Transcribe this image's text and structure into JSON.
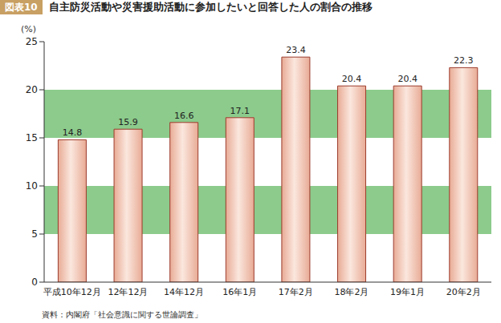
{
  "chart_data": {
    "type": "bar",
    "figure_label": "図表10",
    "title": "自主防災活動や災害援助活動に参加したいと回答した人の割合の推移",
    "y_label": "(%)",
    "source": "資料：内閣府「社会意識に関する世論調査」",
    "categories": [
      "平成10年12月",
      "12年12月",
      "14年12月",
      "16年1月",
      "17年2月",
      "18年2月",
      "19年1月",
      "20年2月"
    ],
    "values": [
      14.8,
      15.9,
      16.6,
      17.1,
      23.4,
      20.4,
      20.4,
      22.3
    ],
    "color": "#e8ab95",
    "ylim": [
      0,
      25
    ],
    "yticks": [
      0,
      5,
      10,
      15,
      20,
      25
    ],
    "grid": true,
    "data_labels": true
  }
}
